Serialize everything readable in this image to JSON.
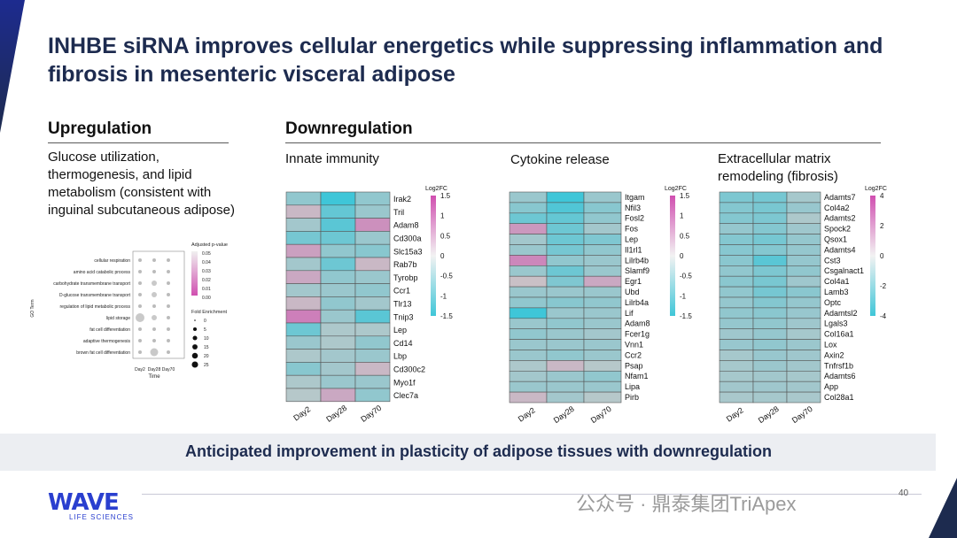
{
  "title": "INHBE siRNA improves cellular energetics while suppressing inflammation and fibrosis in mesenteric visceral adipose",
  "upregulation": {
    "heading": "Upregulation",
    "description": "Glucose utilization, thermogenesis, and lipid metabolism (consistent with inguinal subcutaneous adipose)"
  },
  "downregulation": {
    "heading": "Downregulation"
  },
  "banner": "Anticipated improvement in plasticity of adipose tissues with downregulation",
  "footer": {
    "logo": "WAVE",
    "logo_sub": "LIFE SCIENCES",
    "page": "40",
    "watermark": "公众号 · 鼎泰集团TriApex"
  },
  "colors": {
    "title": "#1d2b4f",
    "low": "#3fc6d8",
    "mid": "#c8c8c8",
    "high": "#d04fb0",
    "logo": "#2a3fcf"
  },
  "chart_data": [
    {
      "type": "scatter",
      "title": "",
      "xlabel": "Time",
      "ylabel": "GO Term",
      "x": [
        "Day2",
        "Day28",
        "Day70"
      ],
      "categories": [
        "cellular respiration",
        "amino acid catabolic process",
        "carbohydrate transmembrane transport",
        "D-glucose transmembrane transport",
        "regulation of lipid metabolic process",
        "lipid storage",
        "fat cell differentiation",
        "adaptive thermogenesis",
        "brown fat cell differentiation"
      ],
      "fold_enrichment": [
        [
          1,
          1,
          1
        ],
        [
          1,
          1,
          1
        ],
        [
          1,
          4,
          1
        ],
        [
          1,
          4,
          1
        ],
        [
          1,
          1,
          1
        ],
        [
          16,
          4,
          1
        ],
        [
          1,
          1,
          1
        ],
        [
          1,
          1,
          1
        ],
        [
          1,
          12,
          1
        ]
      ],
      "legend_color_title": "Adjusted p-value",
      "legend_color_ticks": [
        "0.05",
        "0.04",
        "0.03",
        "0.02",
        "0.01",
        "0.00"
      ],
      "legend_size_title": "Fold Enrichment",
      "legend_size_ticks": [
        "0",
        "5",
        "10",
        "15",
        "20",
        "25"
      ]
    },
    {
      "type": "heatmap",
      "title": "Innate immunity",
      "x": [
        "Day2",
        "Day28",
        "Day70"
      ],
      "genes": [
        "Irak2",
        "Tril",
        "Adam8",
        "Cd300a",
        "Slc15a3",
        "Rab7b",
        "Tyrobp",
        "Ccr1",
        "Tlr13",
        "Tnip3",
        "Lep",
        "Cd14",
        "Lbp",
        "Cd300c2",
        "Myo1f",
        "Clec7a"
      ],
      "values": [
        [
          -0.6,
          -1.5,
          -0.6
        ],
        [
          0.2,
          -1.1,
          -0.5
        ],
        [
          -0.4,
          -1.2,
          0.7
        ],
        [
          -0.9,
          -1.0,
          -0.5
        ],
        [
          0.5,
          -0.6,
          -0.7
        ],
        [
          -0.4,
          -1.0,
          0.2
        ],
        [
          0.4,
          -0.6,
          -0.5
        ],
        [
          -0.4,
          -0.5,
          -0.6
        ],
        [
          0.2,
          -0.6,
          -0.4
        ],
        [
          0.9,
          -0.5,
          -1.2
        ],
        [
          -1.0,
          -0.3,
          -0.3
        ],
        [
          -0.5,
          -0.3,
          -0.6
        ],
        [
          -0.3,
          -0.4,
          -0.5
        ],
        [
          -0.7,
          -0.4,
          0.2
        ],
        [
          -0.3,
          -0.5,
          -0.5
        ],
        [
          -0.2,
          0.4,
          -0.6
        ]
      ],
      "legend_title": "Log2FC",
      "legend_ticks": [
        1.5,
        1,
        0.5,
        0,
        -0.5,
        -1,
        -1.5
      ],
      "range": [
        -1.5,
        1.5
      ]
    },
    {
      "type": "heatmap",
      "title": "Cytokine release",
      "x": [
        "Day2",
        "Day28",
        "Day70"
      ],
      "genes": [
        "Itgam",
        "Nfil3",
        "Fosl2",
        "Fos",
        "Lep",
        "Il1rl1",
        "Lilrb4b",
        "Slamf9",
        "Egr1",
        "Ubd",
        "Lilrb4a",
        "Lif",
        "Adam8",
        "Fcer1g",
        "Vnn1",
        "Ccr2",
        "Psap",
        "Nfam1",
        "Lipa",
        "Pirb"
      ],
      "values": [
        [
          -0.5,
          -1.5,
          -0.5
        ],
        [
          -0.7,
          -1.3,
          -0.7
        ],
        [
          -1.0,
          -1.1,
          -0.6
        ],
        [
          0.6,
          -1.0,
          -0.4
        ],
        [
          -0.4,
          -1.0,
          -0.8
        ],
        [
          -0.5,
          -0.9,
          -0.6
        ],
        [
          0.8,
          -0.6,
          -0.5
        ],
        [
          -0.5,
          -1.0,
          -0.5
        ],
        [
          0.1,
          -0.8,
          0.4
        ],
        [
          -0.5,
          -0.5,
          -0.5
        ],
        [
          -0.6,
          -0.7,
          -0.6
        ],
        [
          -1.5,
          -0.5,
          -0.5
        ],
        [
          -0.5,
          -0.6,
          -0.5
        ],
        [
          -0.6,
          -0.5,
          -0.4
        ],
        [
          -0.5,
          -0.5,
          -0.5
        ],
        [
          -0.5,
          -0.6,
          -0.5
        ],
        [
          -0.3,
          0.2,
          -0.2
        ],
        [
          -0.4,
          -0.5,
          -0.6
        ],
        [
          -0.5,
          -0.5,
          -0.5
        ],
        [
          0.2,
          -0.4,
          -0.2
        ]
      ],
      "legend_title": "Log2FC",
      "legend_ticks": [
        1.5,
        1,
        0.5,
        0,
        -0.5,
        -1,
        -1.5
      ],
      "range": [
        -1.5,
        1.5
      ]
    },
    {
      "type": "heatmap",
      "title": "Extracellular matrix remodeling (fibrosis)",
      "x": [
        "Day2",
        "Day28",
        "Day70"
      ],
      "genes": [
        "Adamts7",
        "Col4a2",
        "Adamts2",
        "Spock2",
        "Qsox1",
        "Adamts4",
        "Cst3",
        "Csgalnact1",
        "Col4a1",
        "Lamb3",
        "Optc",
        "Adamtsl2",
        "Lgals3",
        "Col16a1",
        "Lox",
        "Axin2",
        "Tnfrsf1b",
        "Adamts6",
        "App",
        "Col28a1"
      ],
      "values": [
        [
          -2.2,
          -2.4,
          -1.0
        ],
        [
          -2.0,
          -2.3,
          -1.4
        ],
        [
          -2.0,
          -2.2,
          -0.8
        ],
        [
          -1.5,
          -2.0,
          -1.2
        ],
        [
          -2.0,
          -2.4,
          -1.5
        ],
        [
          -1.9,
          -2.0,
          -1.5
        ],
        [
          -1.8,
          -3.2,
          -1.5
        ],
        [
          -1.6,
          -2.2,
          -1.6
        ],
        [
          -1.8,
          -2.3,
          -1.2
        ],
        [
          -1.6,
          -2.4,
          -1.8
        ],
        [
          -1.5,
          -2.0,
          -1.5
        ],
        [
          -1.6,
          -1.8,
          -1.4
        ],
        [
          -1.5,
          -1.6,
          -1.2
        ],
        [
          -1.2,
          -1.5,
          -1.0
        ],
        [
          -1.4,
          -1.6,
          -1.3
        ],
        [
          -1.0,
          -1.4,
          -1.2
        ],
        [
          -1.0,
          -1.3,
          -1.1
        ],
        [
          -1.0,
          -1.1,
          -1.0
        ],
        [
          -1.1,
          -1.2,
          -1.1
        ],
        [
          -0.9,
          -1.0,
          -0.9
        ]
      ],
      "legend_title": "Log2FC",
      "legend_ticks": [
        4,
        2,
        0,
        -2,
        -4
      ],
      "range": [
        -4,
        4
      ]
    }
  ]
}
